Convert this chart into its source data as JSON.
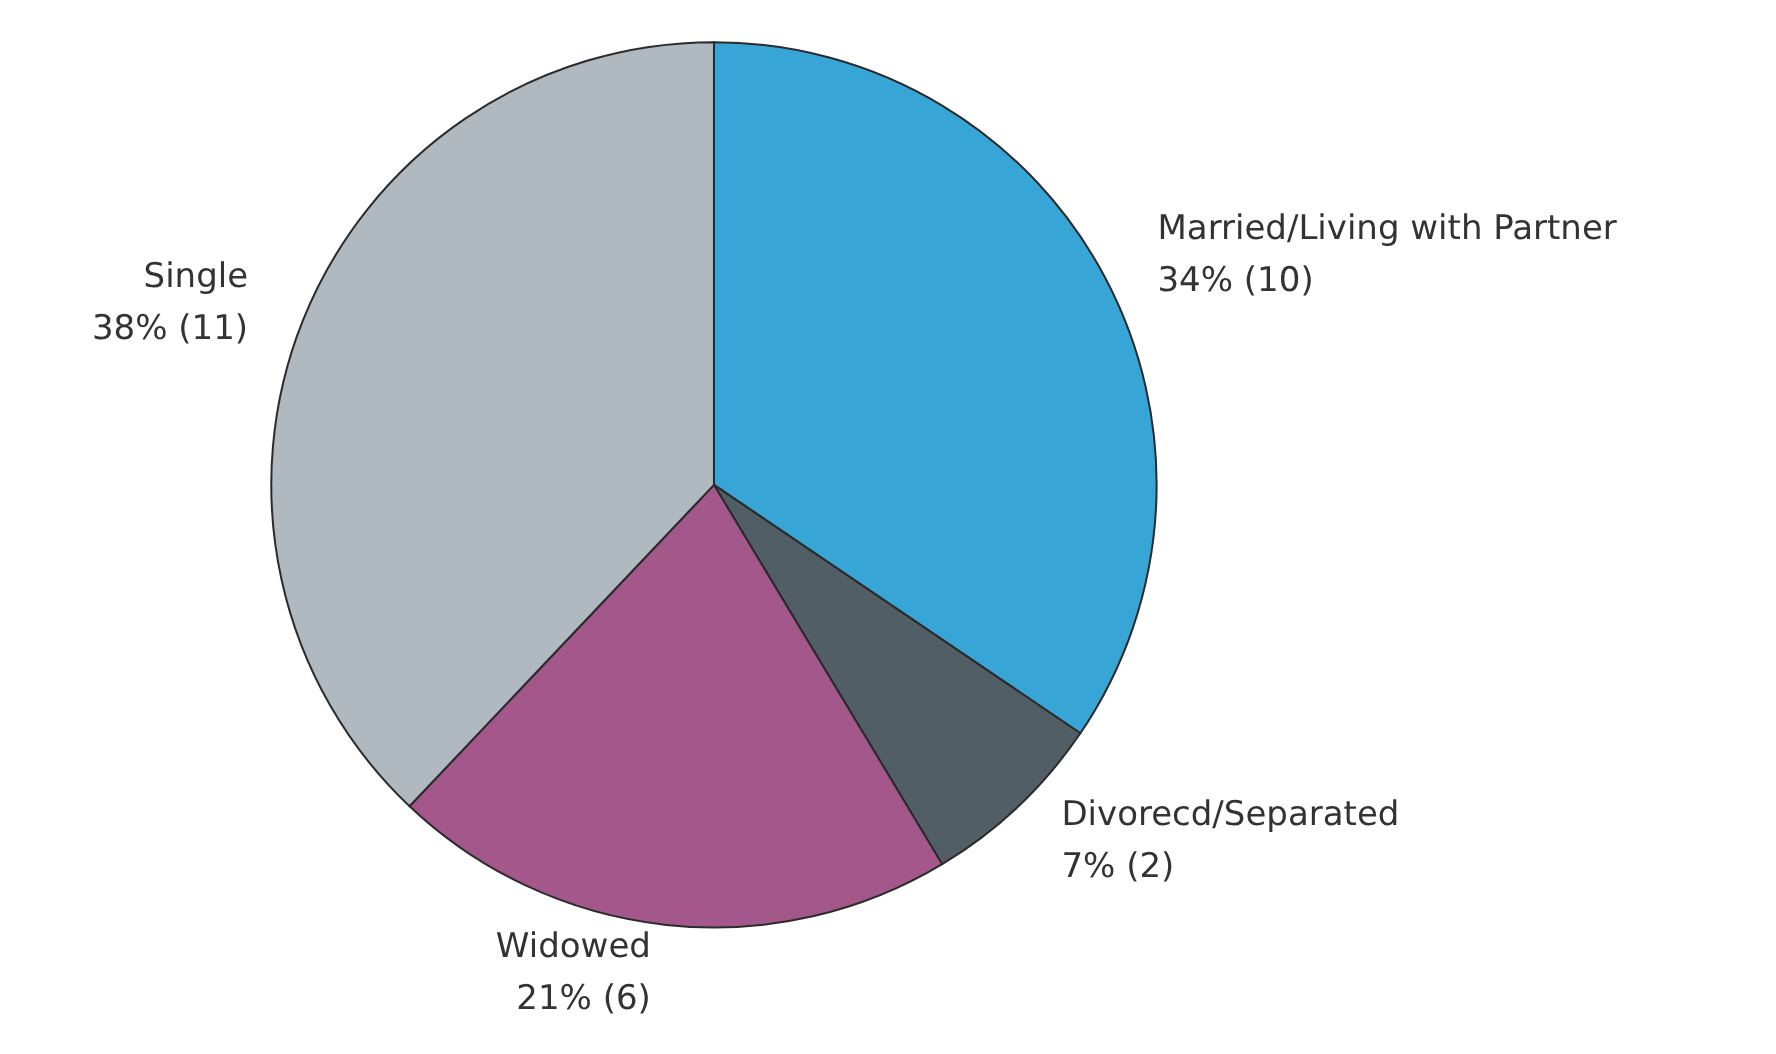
{
  "chart_data": {
    "type": "pie",
    "categories": [
      "Married/Living with Partner",
      "Divorecd/Separated",
      "Widowed",
      "Single"
    ],
    "values": [
      10,
      2,
      6,
      11
    ],
    "value_labels": [
      "34% (10)",
      "7% (2)",
      "21% (6)",
      "38% (11)"
    ],
    "colors": [
      "#37a6d6",
      "#525e66",
      "#a3578b",
      "#b0b8c0"
    ],
    "legend": false
  }
}
